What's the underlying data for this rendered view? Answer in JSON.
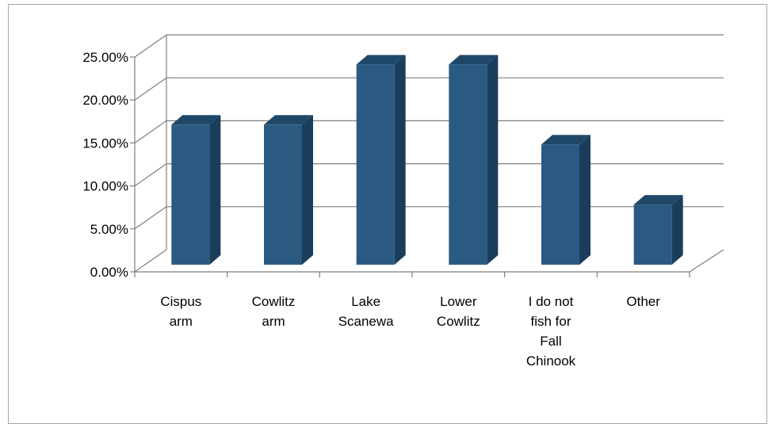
{
  "chart_data": {
    "type": "bar",
    "title": "",
    "xlabel": "",
    "ylabel": "",
    "categories": [
      [
        "Cispus",
        "arm"
      ],
      [
        "Cowlitz",
        "arm"
      ],
      [
        "Lake",
        "Scanewa"
      ],
      [
        "Lower",
        "Cowlitz"
      ],
      [
        "I do not",
        "fish for",
        "Fall",
        "Chinook"
      ],
      [
        "Other"
      ]
    ],
    "values": [
      16.3,
      16.3,
      23.3,
      23.3,
      14.0,
      7.0
    ],
    "ylim": [
      0,
      25
    ],
    "yticks": [
      "0.00%",
      "5.00%",
      "10.00%",
      "15.00%",
      "20.00%",
      "25.00%"
    ],
    "grid": true,
    "legend": "none",
    "style": "3d-column"
  },
  "colors": {
    "bar_front": "#2a5a82",
    "bar_side": "#1b3d5c",
    "bar_top": "#1f4868",
    "grid": "#7f7f7f",
    "axis": "#7f7f7f"
  }
}
